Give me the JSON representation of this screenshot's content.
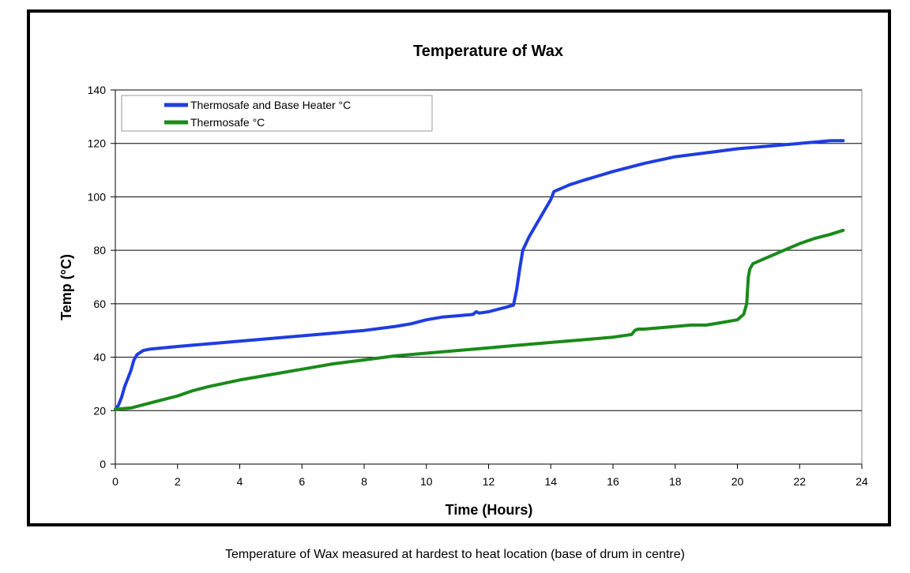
{
  "chart_data": {
    "type": "line",
    "title": "Temperature of Wax",
    "xlabel": "Time (Hours)",
    "ylabel": "Temp (°C)",
    "xlim": [
      0,
      24
    ],
    "ylim": [
      0,
      140
    ],
    "xticks": [
      0,
      2,
      4,
      6,
      8,
      10,
      12,
      14,
      16,
      18,
      20,
      22,
      24
    ],
    "yticks": [
      0,
      20,
      40,
      60,
      80,
      100,
      120,
      140
    ],
    "grid": "horizontal",
    "legend_position": "top-left",
    "series": [
      {
        "name": "Thermosafe and Base Heater °C",
        "color": "#1f3de0",
        "x": [
          0,
          0.1,
          0.2,
          0.3,
          0.4,
          0.5,
          0.6,
          0.7,
          0.9,
          1.1,
          2,
          3,
          4,
          5,
          6,
          7,
          7.5,
          8,
          9,
          9.5,
          10,
          10.5,
          11,
          11.5,
          11.6,
          11.7,
          12,
          12.5,
          12.8,
          12.9,
          13,
          13.1,
          13.3,
          13.6,
          14,
          14.1,
          14.3,
          14.6,
          15,
          16,
          17,
          18,
          19,
          20,
          21,
          22,
          22.5,
          23,
          23.4
        ],
        "y": [
          20.5,
          22,
          25,
          29,
          32,
          35,
          39,
          41,
          42.5,
          43,
          44,
          45,
          46,
          47,
          48,
          49,
          49.5,
          50,
          51.5,
          52.5,
          54,
          55,
          55.5,
          56,
          57,
          56.5,
          57,
          58.5,
          59.5,
          65,
          73,
          80,
          85,
          91,
          99,
          102,
          103,
          104.5,
          106,
          109.5,
          112.5,
          115,
          116.5,
          118,
          119,
          120,
          120.5,
          121,
          121
        ]
      },
      {
        "name": "Thermosafe °C",
        "color": "#1a8a1a",
        "x": [
          0,
          0.5,
          1,
          1.5,
          2,
          2.5,
          3,
          4,
          5,
          6,
          7,
          8,
          9,
          10,
          11,
          12,
          13,
          14,
          15,
          16,
          16.6,
          16.7,
          16.8,
          17,
          18,
          18.5,
          19,
          19.5,
          20,
          20.2,
          20.3,
          20.35,
          20.4,
          20.5,
          21,
          21.5,
          22,
          22.5,
          23,
          23.4
        ],
        "y": [
          20.5,
          21,
          22.5,
          24,
          25.5,
          27.5,
          29,
          31.5,
          33.5,
          35.5,
          37.5,
          39,
          40.5,
          41.5,
          42.5,
          43.5,
          44.5,
          45.5,
          46.5,
          47.5,
          48.5,
          50,
          50.5,
          50.5,
          51.5,
          52,
          52,
          53,
          54,
          56,
          60,
          70,
          73,
          75,
          77.5,
          80,
          82.5,
          84.5,
          86,
          87.5
        ]
      }
    ]
  },
  "caption": "Temperature of Wax measured at hardest to heat location (base of drum in centre)"
}
